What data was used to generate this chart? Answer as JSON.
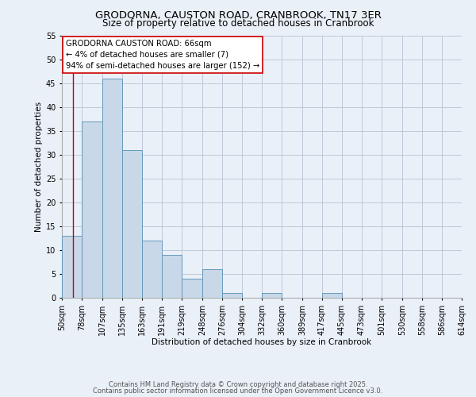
{
  "title_line1": "GRODORNA, CAUSTON ROAD, CRANBROOK, TN17 3ER",
  "title_line2": "Size of property relative to detached houses in Cranbrook",
  "xlabel": "Distribution of detached houses by size in Cranbrook",
  "ylabel": "Number of detached properties",
  "bins": [
    "50sqm",
    "78sqm",
    "107sqm",
    "135sqm",
    "163sqm",
    "191sqm",
    "219sqm",
    "248sqm",
    "276sqm",
    "304sqm",
    "332sqm",
    "360sqm",
    "389sqm",
    "417sqm",
    "445sqm",
    "473sqm",
    "501sqm",
    "530sqm",
    "558sqm",
    "586sqm",
    "614sqm"
  ],
  "bin_edges": [
    50,
    78,
    107,
    135,
    163,
    191,
    219,
    248,
    276,
    304,
    332,
    360,
    389,
    417,
    445,
    473,
    501,
    530,
    558,
    586,
    614
  ],
  "values": [
    13,
    37,
    46,
    31,
    12,
    9,
    4,
    6,
    1,
    0,
    1,
    0,
    0,
    1,
    0,
    0,
    0,
    0,
    0,
    0,
    0
  ],
  "bar_color": "#c8d8e8",
  "bar_edge_color": "#6699bb",
  "grid_color": "#c0c8d8",
  "vline_x": 66,
  "vline_color": "#cc0000",
  "annotation_text": "GRODORNA CAUSTON ROAD: 66sqm\n← 4% of detached houses are smaller (7)\n94% of semi-detached houses are larger (152) →",
  "annotation_box_color": "#ffffff",
  "annotation_box_edge": "#cc0000",
  "ylim": [
    0,
    55
  ],
  "yticks": [
    0,
    5,
    10,
    15,
    20,
    25,
    30,
    35,
    40,
    45,
    50,
    55
  ],
  "footer_line1": "Contains HM Land Registry data © Crown copyright and database right 2025.",
  "footer_line2": "Contains public sector information licensed under the Open Government Licence v3.0.",
  "bg_color": "#eaf0f8"
}
